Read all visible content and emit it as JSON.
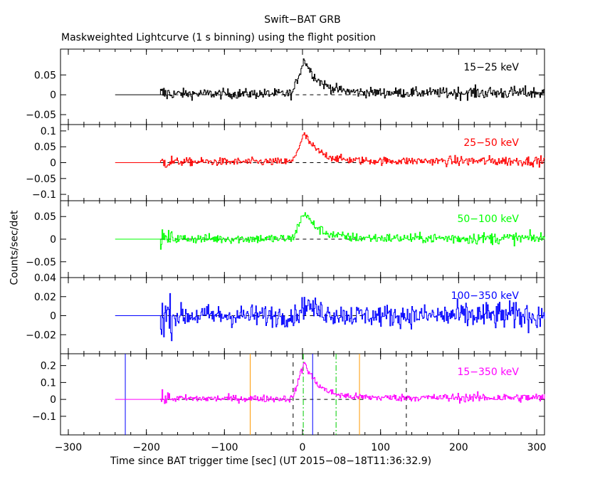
{
  "header": {
    "title": "Swift−BAT GRB",
    "subtitle": "Maskweighted Lightcurve (1 s binning) using the flight position"
  },
  "axes": {
    "xlabel": "Time since BAT trigger time [sec] (UT 2015−08−18T11:36:32.9)",
    "ylabel": "Counts/sec/det"
  },
  "chart_data": [
    {
      "type": "line",
      "band": "15−25 keV",
      "color": "#000000",
      "xlim": [
        -310,
        310
      ],
      "ylim": [
        -0.075,
        0.115
      ],
      "yticks": [
        -0.05,
        0,
        0.05
      ],
      "ytick_labels": [
        "−0.05",
        "0",
        "0.05"
      ],
      "flat_level_before_start": [
        -240,
        -182,
        0.0
      ],
      "peak": {
        "x": 2,
        "y": 0.09
      },
      "post_burst_level": 0.005,
      "noise_amplitude": 0.012
    },
    {
      "type": "line",
      "band": "25−50 keV",
      "color": "#ff0000",
      "xlim": [
        -310,
        310
      ],
      "ylim": [
        -0.12,
        0.12
      ],
      "yticks": [
        -0.1,
        -0.05,
        0,
        0.05,
        0.1
      ],
      "ytick_labels": [
        "−0.1",
        "−0.05",
        "0",
        "0.05",
        "0.1"
      ],
      "flat_level_before_start": [
        -240,
        -182,
        0.0
      ],
      "peak": {
        "x": 2,
        "y": 0.09
      },
      "post_burst_level": 0.005,
      "noise_amplitude": 0.012
    },
    {
      "type": "line",
      "band": "50−100 keV",
      "color": "#00ff00",
      "xlim": [
        -310,
        310
      ],
      "ylim": [
        -0.085,
        0.085
      ],
      "yticks": [
        -0.05,
        0,
        0.05
      ],
      "ytick_labels": [
        "−0.05",
        "0",
        "0.05"
      ],
      "flat_level_before_start": [
        -240,
        -182,
        0.0
      ],
      "peak": {
        "x": 2,
        "y": 0.06
      },
      "post_burst_level": 0.002,
      "noise_amplitude": 0.01
    },
    {
      "type": "line",
      "band": "100−350 keV",
      "color": "#0000ff",
      "xlim": [
        -310,
        310
      ],
      "ylim": [
        -0.04,
        0.04
      ],
      "yticks": [
        -0.02,
        0,
        0.02,
        0.04
      ],
      "ytick_labels": [
        "−0.02",
        "0",
        "0.02",
        "0.04"
      ],
      "flat_level_before_start": [
        -240,
        -182,
        0.0
      ],
      "peak": {
        "x": 5,
        "y": 0.012
      },
      "post_burst_level": 0.0,
      "noise_amplitude": 0.011
    },
    {
      "type": "line",
      "band": "15−350 keV",
      "color": "#ff00ff",
      "xlim": [
        -310,
        310
      ],
      "ylim": [
        -0.21,
        0.27
      ],
      "yticks": [
        -0.1,
        0,
        0.1,
        0.2
      ],
      "ytick_labels": [
        "−0.1",
        "0",
        "0.1",
        "0.2"
      ],
      "flat_level_before_start": [
        -240,
        -182,
        0.0
      ],
      "peak": {
        "x": 2,
        "y": 0.22
      },
      "post_burst_level": 0.01,
      "noise_amplitude": 0.02,
      "vertical_markers": [
        {
          "x": -227,
          "color": "#0000ff",
          "style": "solid"
        },
        {
          "x": -67,
          "color": "#ff9900",
          "style": "solid"
        },
        {
          "x": -12,
          "color": "#000000",
          "style": "dashed"
        },
        {
          "x": 1,
          "color": "#00cc00",
          "style": "dashdot"
        },
        {
          "x": 13,
          "color": "#0000ff",
          "style": "solid"
        },
        {
          "x": 43,
          "color": "#00cc00",
          "style": "dashdot"
        },
        {
          "x": 73,
          "color": "#ff9900",
          "style": "solid"
        },
        {
          "x": 133,
          "color": "#000000",
          "style": "dashed"
        }
      ]
    }
  ],
  "x_axis": {
    "ticks": [
      -300,
      -200,
      -100,
      0,
      100,
      200,
      300
    ],
    "tick_labels": [
      "−300",
      "−200",
      "−100",
      "0",
      "100",
      "200",
      "300"
    ],
    "grid": false
  }
}
